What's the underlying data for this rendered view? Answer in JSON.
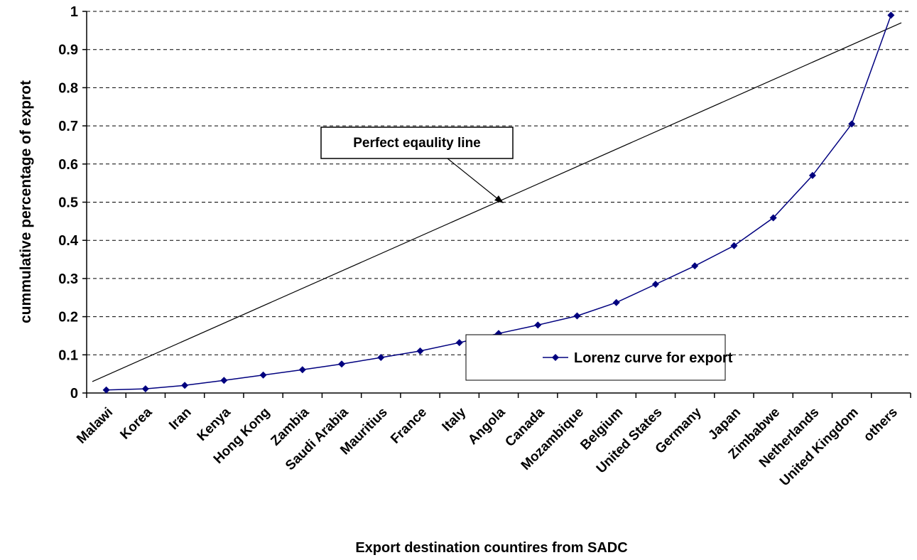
{
  "chart_data": {
    "type": "line",
    "title": "",
    "xlabel": "Export destination countires from SADC",
    "ylabel": "cummulative percentage of exprot",
    "ylim": [
      0,
      1
    ],
    "yticks": [
      "0",
      "0.1",
      "0.2",
      "0.3",
      "0.4",
      "0.5",
      "0.6",
      "0.7",
      "0.8",
      "0.9",
      "1"
    ],
    "grid": "horizontal dashed",
    "categories": [
      "Malawi",
      "Korea",
      "Iran",
      "Kenya",
      "Hong Kong",
      "Zambia",
      "Saudi Arabia",
      "Mauritius",
      "France",
      "Italy",
      "Angola",
      "Canada",
      "Mozambique",
      "Belgium",
      "United States",
      "Germany",
      "Japan",
      "Zimbabwe",
      "Netherlands",
      "United Kingdom",
      "others"
    ],
    "series": [
      {
        "name": "Lorenz curve for export",
        "color": "#00007f",
        "marker": "diamond",
        "values": [
          0.008,
          0.011,
          0.02,
          0.033,
          0.047,
          0.061,
          0.076,
          0.093,
          0.11,
          0.132,
          0.156,
          0.178,
          0.202,
          0.237,
          0.285,
          0.333,
          0.386,
          0.459,
          0.57,
          0.705,
          0.99
        ]
      }
    ],
    "equality_line": {
      "values": [
        0.03,
        0.97
      ]
    },
    "annotation": "Perfect eqaulity line",
    "legend_position": "bottom-right"
  }
}
